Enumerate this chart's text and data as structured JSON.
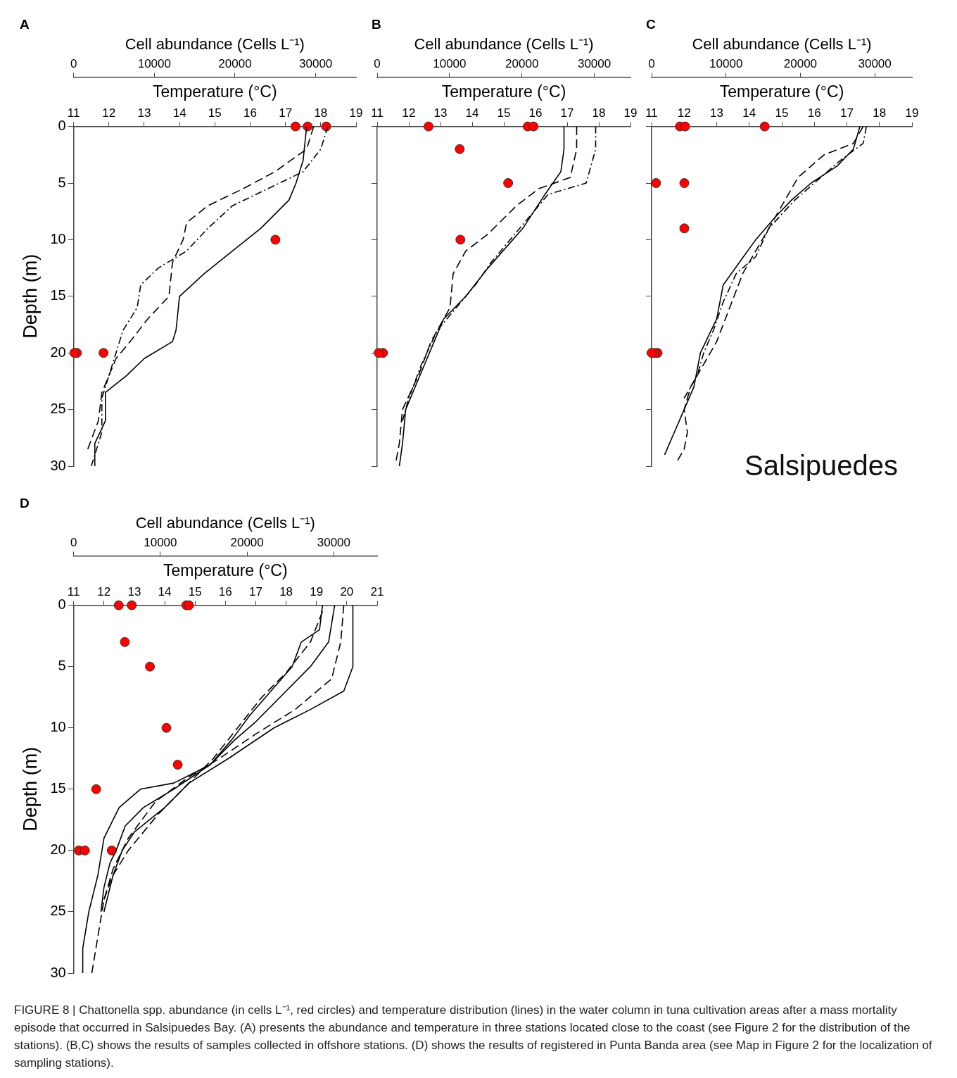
{
  "chart_data": [
    {
      "type": "line",
      "title": "A",
      "xlabel": "Temperature (°C)",
      "x2label": "Cell abundance (Cells L⁻¹)",
      "ylabel": "Depth (m)",
      "xlim": [
        11,
        19
      ],
      "xticks": [
        11,
        12,
        13,
        14,
        15,
        16,
        17,
        18,
        19
      ],
      "x2lim": [
        0,
        35000
      ],
      "x2ticks": [
        0,
        10000,
        20000,
        30000
      ],
      "ylim": [
        30,
        0
      ],
      "yticks": [
        0,
        5,
        10,
        15,
        20,
        25,
        30
      ],
      "grid": false,
      "legend": false,
      "series": [
        {
          "type": "line",
          "color": "#000000",
          "line_style": "solid",
          "x": [
            17.6,
            17.5,
            17.3,
            17.1,
            16.3,
            15.5,
            14.7,
            14.0,
            13.9,
            13.8,
            13.0,
            12.5,
            11.9,
            11.9,
            11.6,
            11.6
          ],
          "values": [
            0,
            3,
            5,
            6.5,
            9,
            11,
            13,
            15,
            18,
            19,
            20.5,
            22,
            23.5,
            26,
            28,
            30
          ]
        },
        {
          "type": "line",
          "color": "#000000",
          "line_style": "dashed",
          "x": [
            17.8,
            17.6,
            16.7,
            15.8,
            14.8,
            14.2,
            14.1,
            13.8,
            13.7,
            13.1,
            12.6,
            12.2,
            12.0,
            11.8,
            11.7,
            11.4
          ],
          "values": [
            0,
            2,
            4,
            5.5,
            7,
            8.5,
            10,
            12,
            15,
            17,
            19,
            20.5,
            22,
            23.5,
            26,
            28.5
          ]
        },
        {
          "type": "line",
          "color": "#000000",
          "line_style": "dotted",
          "x": [
            18.2,
            18.0,
            17.5,
            16.5,
            15.5,
            14.8,
            14.2,
            13.4,
            12.9,
            12.8,
            12.4,
            12.2,
            12.0,
            11.8,
            11.8,
            11.5
          ],
          "values": [
            0,
            2,
            4,
            5.5,
            7,
            9,
            11,
            12.5,
            14,
            16,
            18,
            20,
            22,
            24,
            27,
            30
          ]
        },
        {
          "type": "scatter",
          "axis": "x2",
          "color": "#ff0000",
          "marker": "circle",
          "x": [
            27500,
            29000,
            31300,
            25000,
            3700,
            400,
            100
          ],
          "values": [
            0,
            0,
            0,
            10,
            20,
            20,
            20
          ]
        }
      ]
    },
    {
      "type": "line",
      "title": "B",
      "xlabel": "Temperature (°C)",
      "x2label": "Cell abundance (Cells L⁻¹)",
      "xlim": [
        11,
        19
      ],
      "xticks": [
        11,
        12,
        13,
        14,
        15,
        16,
        17,
        18,
        19
      ],
      "x2lim": [
        0,
        35000
      ],
      "x2ticks": [
        0,
        10000,
        20000,
        30000
      ],
      "ylim": [
        30,
        0
      ],
      "yticks": [
        0,
        5,
        10,
        15,
        20,
        25,
        30
      ],
      "tick_labels": "x",
      "grid": false,
      "legend": false,
      "series": [
        {
          "type": "line",
          "color": "#000000",
          "line_style": "solid",
          "x": [
            16.9,
            16.9,
            16.8,
            16.3,
            15.6,
            14.5,
            13.8,
            13.1,
            12.8,
            12.5,
            12.2,
            11.9,
            11.8,
            11.7
          ],
          "values": [
            0,
            2,
            4,
            6,
            9,
            12.5,
            15,
            17,
            19,
            21,
            23,
            25,
            28,
            30
          ]
        },
        {
          "type": "line",
          "color": "#000000",
          "line_style": "dashed",
          "x": [
            17.3,
            17.3,
            17.1,
            16.1,
            15.4,
            14.5,
            13.8,
            13.4,
            13.3,
            12.7,
            12.3,
            11.8,
            11.7,
            11.6
          ],
          "values": [
            0,
            2,
            4.5,
            5.5,
            7,
            9.5,
            11,
            13,
            16,
            19,
            22,
            25,
            28,
            29.5
          ]
        },
        {
          "type": "line",
          "color": "#000000",
          "line_style": "dotted",
          "x": [
            17.9,
            17.9,
            17.6,
            16.4,
            15.8,
            15.2,
            14.6,
            14.1,
            13.5,
            12.9,
            12.4,
            12.0,
            11.8
          ],
          "values": [
            0,
            2,
            5,
            6,
            8,
            10,
            12,
            14,
            16,
            18,
            21,
            24,
            26
          ]
        },
        {
          "type": "scatter",
          "axis": "x2",
          "color": "#ff0000",
          "marker": "circle",
          "x": [
            7100,
            20800,
            21600,
            11400,
            18100,
            11500,
            800,
            200
          ],
          "values": [
            0,
            0,
            0,
            2,
            5,
            10,
            20,
            20
          ]
        }
      ]
    },
    {
      "type": "line",
      "title": "C",
      "xlabel": "Temperature (°C)",
      "x2label": "Cell abundance (Cells L⁻¹)",
      "xlim": [
        11,
        19
      ],
      "xticks": [
        11,
        12,
        13,
        14,
        15,
        16,
        17,
        18,
        19
      ],
      "x2lim": [
        0,
        35000
      ],
      "x2ticks": [
        0,
        10000,
        20000,
        30000
      ],
      "ylim": [
        30,
        0
      ],
      "yticks": [
        0,
        5,
        10,
        15,
        20,
        25,
        30
      ],
      "tick_labels": "x",
      "grid": false,
      "legend": false,
      "annotations": [
        "Salsipuedes"
      ],
      "series": [
        {
          "type": "line",
          "color": "#000000",
          "line_style": "solid",
          "x": [
            17.4,
            17.2,
            16.7,
            15.9,
            15.3,
            14.8,
            14.2,
            13.7,
            13.2,
            13.0,
            12.5,
            12.3,
            12.0,
            11.7,
            11.4
          ],
          "values": [
            0,
            2,
            3.5,
            5,
            6.5,
            8,
            10,
            12,
            14,
            17,
            20,
            23,
            25,
            27,
            29
          ]
        },
        {
          "type": "line",
          "color": "#000000",
          "line_style": "dashed",
          "x": [
            17.5,
            17.2,
            16.3,
            15.5,
            15.1,
            14.6,
            14.2,
            13.8,
            13.4,
            13.0,
            12.6,
            12.2,
            12.0,
            12.1,
            12.0,
            11.8
          ],
          "values": [
            0,
            1.5,
            2.5,
            4.5,
            6.5,
            9,
            11,
            13,
            16,
            19,
            21,
            23,
            25,
            27,
            28.5,
            29.5
          ]
        },
        {
          "type": "line",
          "color": "#000000",
          "line_style": "dotted",
          "x": [
            17.6,
            17.5,
            16.8,
            16.2,
            15.4,
            14.6,
            14.2,
            13.6,
            13.2,
            12.9,
            12.6,
            12.4,
            12.0
          ],
          "values": [
            0,
            1.5,
            3,
            4.5,
            6.5,
            9,
            11.5,
            13,
            15.5,
            18,
            20,
            22,
            24
          ]
        },
        {
          "type": "scatter",
          "axis": "x2",
          "color": "#ff0000",
          "marker": "circle",
          "x": [
            3800,
            4500,
            15200,
            600,
            4400,
            4400,
            800,
            400,
            0
          ],
          "values": [
            0,
            0,
            0,
            5,
            5,
            9,
            20,
            20,
            20
          ]
        }
      ]
    },
    {
      "type": "line",
      "title": "D",
      "xlabel": "Temperature (°C)",
      "x2label": "Cell abundance (Cells L⁻¹)",
      "ylabel": "Depth (m)",
      "xlim": [
        11,
        21
      ],
      "xticks": [
        11,
        12,
        13,
        14,
        15,
        16,
        17,
        18,
        19,
        20,
        21
      ],
      "x2lim": [
        0,
        35000
      ],
      "x2ticks": [
        0,
        10000,
        20000,
        30000
      ],
      "ylim": [
        30,
        0
      ],
      "yticks": [
        0,
        5,
        10,
        15,
        20,
        25,
        30
      ],
      "grid": false,
      "legend": false,
      "annotations": [
        "FIGURE 8 | Chattonella spp. abundance (in cells L⁻¹, red circles) and temperature distribution (lines) in the water column in tuna cultivation areas after a mass mortality episode that occurred in Salsipuedes Bay. (A) presents the abundance and temperature in three stations located close to the coast (see Figure 2 for the distribution of the stations). (B,C) shows the results of samples collected in offshore stations. (D) shows the results of registered in Punta Banda area (see Map in Figure 2 for the localization of sampling stations)."
      ],
      "series": [
        {
          "type": "line",
          "color": "#000000",
          "line_style": "solid",
          "x": [
            19.2,
            19.1,
            18.5,
            18.2,
            17.5,
            16.8,
            16.2,
            15.5,
            14.3,
            13.3,
            12.7,
            12.4,
            12.2,
            12.0,
            11.9
          ],
          "values": [
            0,
            2,
            3,
            5,
            7,
            9,
            11,
            13,
            15,
            16.5,
            18,
            20,
            21,
            23,
            25
          ]
        },
        {
          "type": "line",
          "color": "#000000",
          "line_style": "solid",
          "x": [
            19.6,
            19.4,
            18.8,
            18.0,
            17.0,
            16.3,
            15.5,
            14.3,
            13.2,
            12.5,
            12.0,
            11.8,
            11.5,
            11.3,
            11.3
          ],
          "values": [
            0,
            3,
            5,
            7,
            9.5,
            11,
            13,
            14.5,
            15,
            16.5,
            19,
            22,
            25,
            28,
            30
          ]
        },
        {
          "type": "line",
          "color": "#000000",
          "line_style": "solid",
          "x": [
            20.2,
            20.2,
            19.9,
            18.8,
            17.6,
            16.1,
            14.8,
            14.0,
            13.0,
            12.6,
            12.3,
            12.0
          ],
          "values": [
            0,
            5,
            7,
            8.5,
            10,
            12.5,
            14.5,
            16.5,
            18.5,
            20,
            22,
            25
          ]
        },
        {
          "type": "line",
          "color": "#000000",
          "line_style": "dashed",
          "x": [
            19.9,
            19.8,
            19.5,
            18.3,
            17.0,
            15.8,
            14.8,
            13.7,
            12.8,
            12.3,
            12.0,
            11.8,
            11.6
          ],
          "values": [
            0,
            3,
            6,
            8.5,
            10.5,
            12.5,
            14,
            16,
            19,
            21.5,
            24,
            27,
            30
          ]
        },
        {
          "type": "line",
          "color": "#000000",
          "line_style": "dashed",
          "x": [
            19.2,
            18.8,
            18.0,
            17.2,
            16.4,
            15.6,
            14.8,
            13.8,
            12.8,
            12.3,
            12.0
          ],
          "values": [
            0.5,
            3,
            5.5,
            7.5,
            10,
            12.5,
            14.5,
            17,
            20,
            22,
            24
          ]
        },
        {
          "type": "scatter",
          "axis": "x2",
          "color": "#ff0000",
          "marker": "circle",
          "x": [
            5200,
            6700,
            13000,
            13300,
            5900,
            8800,
            10700,
            12000,
            2600,
            600,
            1300,
            4400
          ],
          "values": [
            0,
            0,
            0,
            0,
            3,
            5,
            10,
            13,
            15,
            20,
            20,
            20
          ]
        }
      ]
    }
  ]
}
